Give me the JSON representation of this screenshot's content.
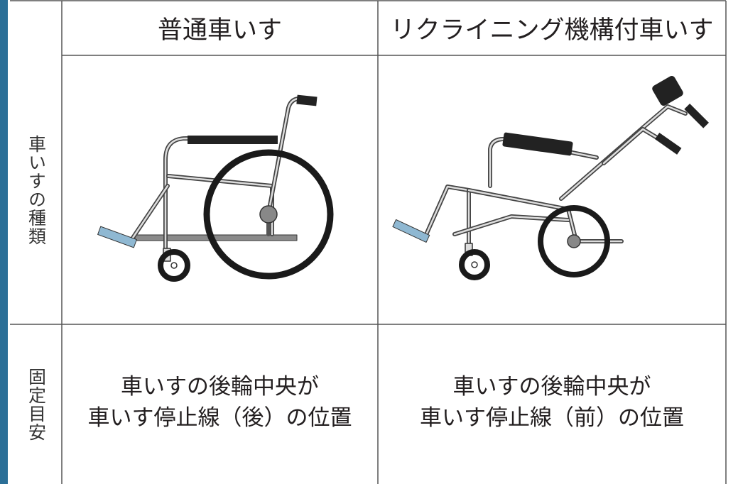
{
  "table": {
    "header": [
      "普通車いす",
      "リクライニング機構付車いす"
    ],
    "rows": [
      {
        "label": "車いすの種類"
      },
      {
        "label": "固定目安",
        "cells": [
          [
            "車いすの後輪中央が",
            "車いす停止線（後）の位置"
          ],
          [
            "車いすの後輪中央が",
            "車いす停止線（前）の位置"
          ]
        ]
      }
    ]
  }
}
